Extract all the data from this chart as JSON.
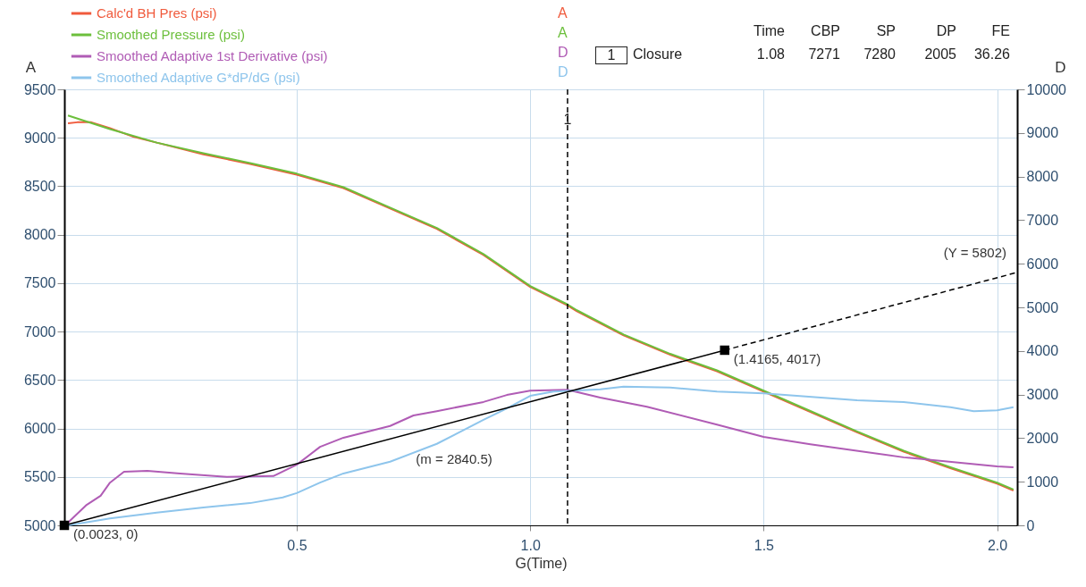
{
  "chart_data": {
    "type": "line",
    "xlabel": "G(Time)",
    "ylabel": "A",
    "y2label": "D",
    "xlim": [
      0.0023,
      2.043
    ],
    "ylim": [
      5000,
      9500
    ],
    "y2lim": [
      0,
      10000
    ],
    "xticks": [
      0.5,
      {
        "value": 1,
        "label": "1.0"
      },
      1.5,
      {
        "value": 2,
        "label": "2.0"
      }
    ],
    "yticks": [
      5000,
      5500,
      6000,
      6500,
      7000,
      7500,
      8000,
      8500,
      9000,
      9500
    ],
    "y2ticks": [
      0,
      1000,
      2000,
      3000,
      4000,
      5000,
      6000,
      7000,
      8000,
      9000,
      10000
    ],
    "grid": true,
    "legend": "top left",
    "series": [
      {
        "name": "Calc'd BH Pres (psi)",
        "color": "#f05a3c",
        "x": [
          0.01,
          0.03,
          0.06,
          0.1,
          0.15,
          0.2,
          0.3,
          0.4,
          0.5,
          0.6,
          0.7,
          0.8,
          0.9,
          1.0,
          1.08,
          1.1,
          1.2,
          1.3,
          1.4,
          1.5,
          1.6,
          1.7,
          1.8,
          1.9,
          2.0,
          2.035
        ],
        "values": [
          9150,
          9160,
          9160,
          9100,
          9010,
          8950,
          8830,
          8730,
          8620,
          8480,
          8270,
          8060,
          7790,
          7460,
          7270,
          7210,
          6960,
          6760,
          6590,
          6380,
          6170,
          5960,
          5760,
          5590,
          5430,
          5360
        ]
      },
      {
        "name": "Smoothed Pressure (psi)",
        "color": "#6cbf3c",
        "x": [
          0.01,
          0.1,
          0.2,
          0.3,
          0.4,
          0.5,
          0.6,
          0.7,
          0.8,
          0.9,
          1.0,
          1.08,
          1.1,
          1.2,
          1.3,
          1.4,
          1.5,
          1.6,
          1.7,
          1.8,
          1.9,
          2.0,
          2.035
        ],
        "values": [
          9230,
          9090,
          8950,
          8840,
          8740,
          8630,
          8490,
          8280,
          8070,
          7800,
          7470,
          7280,
          7220,
          6970,
          6770,
          6600,
          6390,
          6180,
          5970,
          5770,
          5600,
          5440,
          5370
        ]
      },
      {
        "name": "Smoothed Adaptive 1st Derivative (psi)",
        "color": "#b05cb5",
        "axis": "y2",
        "x": [
          0.01,
          0.05,
          0.08,
          0.1,
          0.13,
          0.18,
          0.25,
          0.35,
          0.45,
          0.5,
          0.55,
          0.6,
          0.7,
          0.75,
          0.8,
          0.9,
          0.95,
          1.0,
          1.08,
          1.15,
          1.25,
          1.4,
          1.5,
          1.6,
          1.8,
          2.0,
          2.035
        ],
        "values": [
          60,
          470,
          680,
          980,
          1230,
          1250,
          1190,
          1110,
          1130,
          1390,
          1800,
          2010,
          2280,
          2520,
          2620,
          2830,
          2990,
          3090,
          3110,
          2930,
          2720,
          2310,
          2030,
          1860,
          1560,
          1350,
          1330
        ]
      },
      {
        "name": "Smoothed Adaptive G*dP/dG (psi)",
        "color": "#8ec5ec",
        "axis": "y2",
        "x": [
          0.01,
          0.1,
          0.2,
          0.3,
          0.4,
          0.47,
          0.5,
          0.55,
          0.6,
          0.7,
          0.8,
          0.9,
          0.95,
          1.0,
          1.05,
          1.15,
          1.2,
          1.3,
          1.4,
          1.5,
          1.7,
          1.8,
          1.9,
          1.95,
          2.0,
          2.035
        ],
        "values": [
          0,
          160,
          290,
          410,
          510,
          640,
          740,
          980,
          1190,
          1460,
          1870,
          2420,
          2680,
          2970,
          3070,
          3120,
          3180,
          3160,
          3070,
          3030,
          2870,
          2830,
          2710,
          2620,
          2640,
          2710
        ]
      },
      {
        "color": "#000000",
        "axis": "y2",
        "marker": "square",
        "x": [
          0.0023,
          1.4165
        ],
        "values": [
          0,
          4017
        ]
      },
      {
        "color": "#000000",
        "axis": "y2",
        "line_style": "dashed",
        "x": [
          1.4165,
          2.043
        ],
        "values": [
          4017,
          5802
        ]
      }
    ],
    "ref_lines": [
      {
        "axis": "x",
        "value": 1.08,
        "label": "1",
        "color": "#000000",
        "line_style": "dashed"
      }
    ],
    "annotations": [
      "Time",
      "CBP",
      "SP",
      "DP",
      "FE",
      "1",
      "Closure",
      "1.08",
      "7271",
      "7280",
      "2005",
      "36.26",
      "(0.0023, 0)",
      "(m = 2840.5)",
      "(1.4165, 4017)",
      "(Y = 5802)"
    ]
  }
}
